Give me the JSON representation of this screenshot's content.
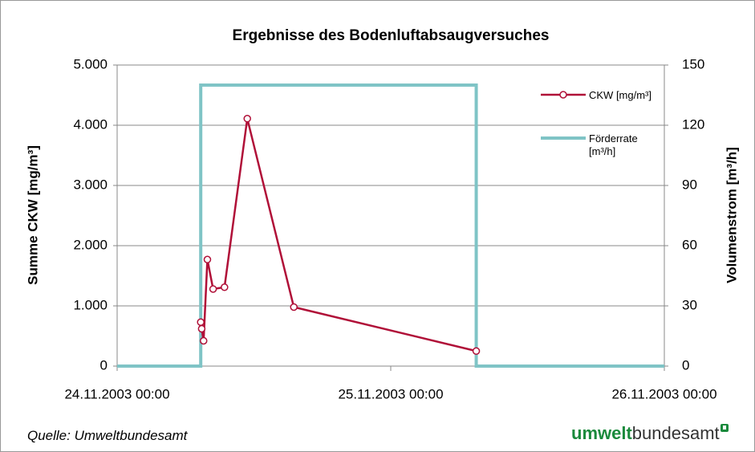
{
  "chart_data": {
    "type": "line",
    "title": "Ergebnisse des Bodenluftabsaugversuches",
    "ylabel": "Summe CKW [mg/m³]",
    "y2label": "Volumenstrom [m³/h]",
    "xlim": [
      "2003-11-24T00:00",
      "2003-11-26T00:00"
    ],
    "xticks": [
      {
        "value": "2003-11-24T00:00",
        "label": "24.11.2003 00:00"
      },
      {
        "value": "2003-11-25T00:00",
        "label": "25.11.2003 00:00"
      },
      {
        "value": "2003-11-26T00:00",
        "label": "26.11.2003 00:00"
      }
    ],
    "ylim": [
      0,
      5000
    ],
    "yticks": [
      0,
      {
        "value": 1000,
        "label": "1.000"
      },
      {
        "value": 2000,
        "label": "2.000"
      },
      {
        "value": 3000,
        "label": "3.000"
      },
      {
        "value": 4000,
        "label": "4.000"
      },
      {
        "value": 5000,
        "label": "5.000"
      }
    ],
    "y2lim": [
      0,
      150
    ],
    "y2ticks": [
      0,
      30,
      60,
      90,
      120,
      150
    ],
    "grid": true,
    "legend": "top-right",
    "series": [
      {
        "name": "CKW [mg/m³]",
        "color": "#b01038",
        "markers": true,
        "x": [
          "2003-11-24T07:20",
          "2003-11-24T07:25",
          "2003-11-24T07:35",
          "2003-11-24T07:55",
          "2003-11-24T08:25",
          "2003-11-24T09:25",
          "2003-11-24T11:25",
          "2003-11-24T15:30",
          "2003-11-25T07:30"
        ],
        "values": [
          730,
          620,
          420,
          1770,
          1280,
          1310,
          4110,
          980,
          250
        ]
      },
      {
        "name": "Förderrate [m³/h]",
        "color": "#7fc4c6",
        "axis": "y2",
        "markers": false,
        "x": [
          "2003-11-24T00:00",
          "2003-11-24T07:20",
          "2003-11-24T07:20",
          "2003-11-25T07:30",
          "2003-11-25T07:30",
          "2003-11-26T00:00"
        ],
        "values": [
          0,
          0,
          140,
          140,
          0,
          0
        ]
      }
    ]
  },
  "footer": {
    "source": "Quelle: Umweltbundesamt",
    "logo_bold": "umwelt",
    "logo_regular": "bundesamt"
  }
}
